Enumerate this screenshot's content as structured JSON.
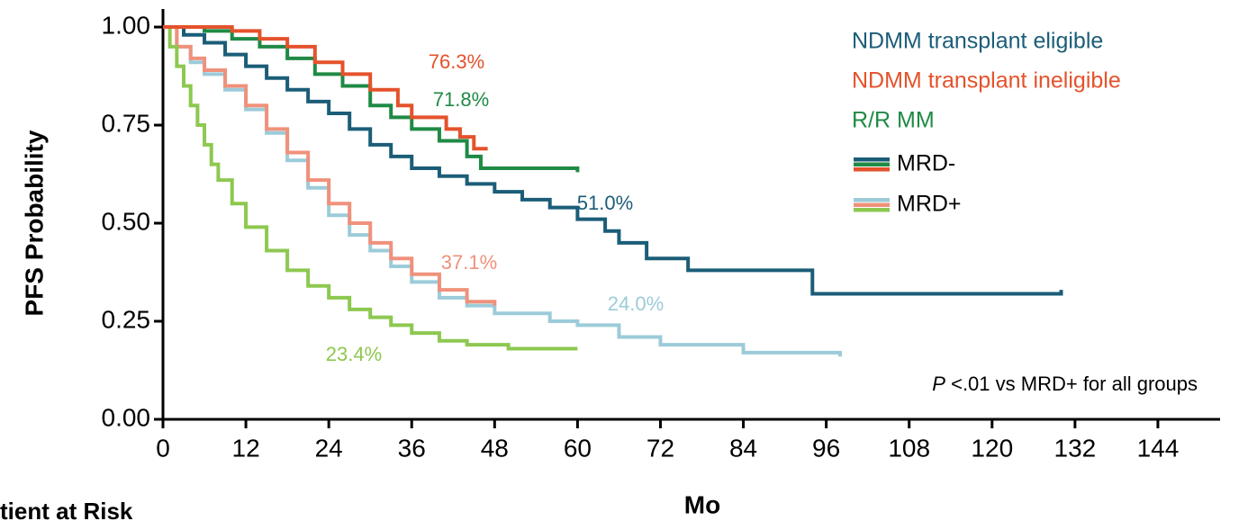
{
  "chart_data": {
    "type": "step",
    "xlabel": "Mo",
    "ylabel": "PFS Probability",
    "footer": "tient at Risk",
    "xlim": [
      0,
      153
    ],
    "ylim": [
      0,
      1.046
    ],
    "xticks": [
      0,
      12,
      24,
      36,
      48,
      60,
      72,
      84,
      96,
      108,
      120,
      132,
      144
    ],
    "yticks": [
      {
        "value": 0,
        "label": "0.00"
      },
      {
        "value": 0.25,
        "label": "0.25"
      },
      {
        "value": 0.5,
        "label": "0.50"
      },
      {
        "value": 0.75,
        "label": "0.75"
      },
      {
        "value": 1,
        "label": "1.00"
      }
    ],
    "legend": {
      "groups": [
        {
          "name": "NDMM transplant eligible",
          "color": "#1b5d78"
        },
        {
          "name": "NDMM transplant ineligible",
          "color": "#e4522b"
        },
        {
          "name": "R/R MM",
          "color": "#1f8a45"
        }
      ],
      "status": [
        "MRD-",
        "MRD+"
      ]
    },
    "annotations": [
      "76.3%",
      "71.8%",
      "51.0%",
      "37.1%",
      "24.0%",
      "23.4%"
    ],
    "note": {
      "italic": "P",
      "text": " <.01 vs MRD+ for all groups"
    },
    "series": [
      {
        "group": 0,
        "status": 1,
        "color": "#9ccbd9",
        "x": [
          0,
          2,
          4,
          6,
          9,
          12,
          15,
          18,
          21,
          24,
          27,
          30,
          33,
          36,
          40,
          44,
          48,
          56,
          60,
          66,
          72,
          84,
          98
        ],
        "values": [
          1,
          0.95,
          0.91,
          0.88,
          0.84,
          0.79,
          0.73,
          0.66,
          0.59,
          0.52,
          0.47,
          0.43,
          0.39,
          0.35,
          0.31,
          0.29,
          0.27,
          0.25,
          0.24,
          0.21,
          0.19,
          0.17,
          0.16
        ]
      },
      {
        "group": 1,
        "status": 1,
        "color": "#f0917b",
        "x": [
          0,
          2,
          4,
          6,
          9,
          12,
          15,
          18,
          21,
          24,
          27,
          30,
          33,
          36,
          40,
          44,
          48
        ],
        "values": [
          1,
          0.95,
          0.92,
          0.89,
          0.85,
          0.8,
          0.74,
          0.68,
          0.61,
          0.55,
          0.5,
          0.45,
          0.41,
          0.37,
          0.33,
          0.3,
          0.29
        ]
      },
      {
        "group": 2,
        "status": 1,
        "color": "#8dc850",
        "x": [
          0,
          1,
          2,
          3,
          4,
          5,
          6,
          7,
          8,
          10,
          12,
          15,
          18,
          21,
          24,
          27,
          30,
          33,
          36,
          40,
          44,
          50,
          60
        ],
        "values": [
          1,
          0.95,
          0.9,
          0.85,
          0.8,
          0.75,
          0.7,
          0.65,
          0.61,
          0.55,
          0.49,
          0.43,
          0.38,
          0.34,
          0.31,
          0.28,
          0.26,
          0.24,
          0.22,
          0.2,
          0.19,
          0.18,
          0.18
        ]
      },
      {
        "group": 0,
        "status": 0,
        "color": "#1b5d78",
        "x": [
          0,
          3,
          6,
          9,
          12,
          15,
          18,
          21,
          24,
          27,
          30,
          33,
          36,
          40,
          44,
          48,
          52,
          56,
          60,
          64,
          66,
          70,
          76,
          94,
          130
        ],
        "values": [
          1,
          0.98,
          0.96,
          0.93,
          0.9,
          0.87,
          0.84,
          0.81,
          0.78,
          0.74,
          0.7,
          0.67,
          0.64,
          0.62,
          0.6,
          0.58,
          0.56,
          0.54,
          0.51,
          0.48,
          0.45,
          0.41,
          0.38,
          0.32,
          0.33
        ]
      },
      {
        "group": 2,
        "status": 0,
        "color": "#1f8a45",
        "x": [
          0,
          6,
          10,
          14,
          18,
          22,
          26,
          30,
          33,
          36,
          40,
          44,
          46,
          60
        ],
        "values": [
          1,
          0.99,
          0.97,
          0.95,
          0.92,
          0.88,
          0.85,
          0.8,
          0.77,
          0.74,
          0.71,
          0.67,
          0.64,
          0.63
        ]
      },
      {
        "group": 1,
        "status": 0,
        "color": "#e4522b",
        "x": [
          0,
          6,
          10,
          14,
          18,
          22,
          26,
          30,
          34,
          36,
          41,
          43,
          45,
          47
        ],
        "values": [
          1,
          1,
          0.99,
          0.97,
          0.95,
          0.91,
          0.88,
          0.84,
          0.8,
          0.77,
          0.74,
          0.72,
          0.69,
          0.69
        ]
      }
    ]
  }
}
